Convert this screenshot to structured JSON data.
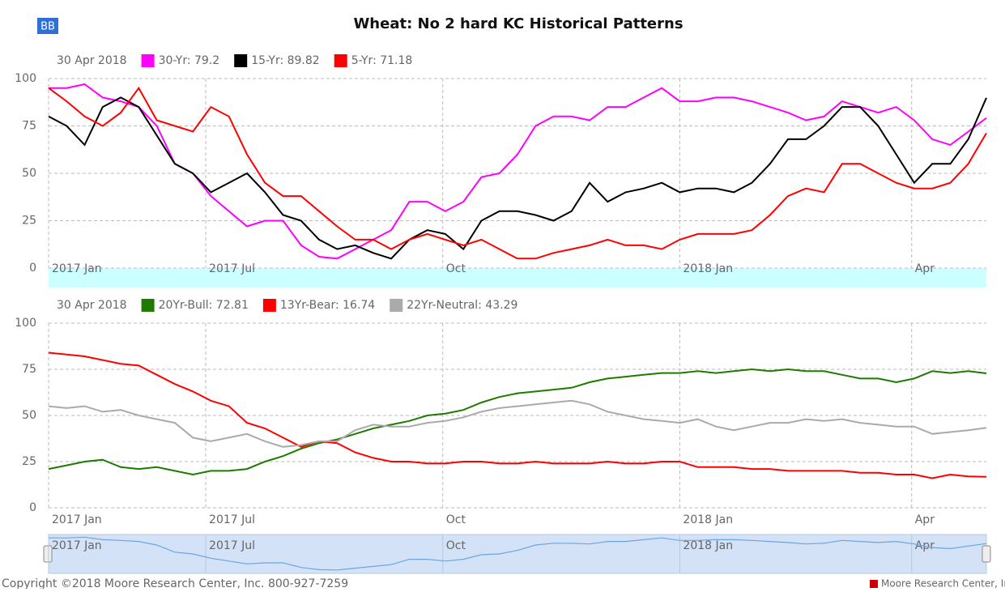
{
  "button": "BB",
  "chart_data": [
    {
      "type": "line",
      "title": "Wheat: No 2 hard KC Historical Patterns",
      "legend_date": "30 Apr 2018",
      "xlim": [
        0,
        364
      ],
      "xticks": [
        {
          "value": 0,
          "label": "2017 Jan"
        },
        {
          "value": 61,
          "label": "2017 Jul"
        },
        {
          "value": 153,
          "label": "Oct"
        },
        {
          "value": 245,
          "label": "2018 Jan"
        },
        {
          "value": 335,
          "label": "Apr"
        }
      ],
      "ylim": [
        0,
        100
      ],
      "yticks": [
        0,
        25,
        50,
        75,
        100
      ],
      "grid": true,
      "x": [
        0,
        7,
        14,
        21,
        28,
        35,
        42,
        49,
        56,
        63,
        70,
        77,
        84,
        91,
        98,
        105,
        112,
        119,
        126,
        133,
        140,
        147,
        154,
        161,
        168,
        175,
        182,
        189,
        196,
        203,
        210,
        217,
        224,
        231,
        238,
        245,
        252,
        259,
        266,
        273,
        280,
        287,
        294,
        301,
        308,
        315,
        322,
        329,
        336,
        343,
        350,
        357,
        364
      ],
      "series": [
        {
          "name": "30-Yr: 79.2",
          "color": "#ff00ff",
          "values": [
            95,
            95,
            97,
            90,
            88,
            85,
            75,
            55,
            50,
            38,
            30,
            22,
            25,
            25,
            12,
            6,
            5,
            10,
            15,
            20,
            35,
            35,
            30,
            35,
            48,
            50,
            60,
            75,
            80,
            80,
            78,
            85,
            85,
            90,
            95,
            88,
            88,
            90,
            90,
            88,
            85,
            82,
            78,
            80,
            88,
            85,
            82,
            85,
            78,
            68,
            65,
            72,
            79.2
          ]
        },
        {
          "name": "15-Yr: 89.82",
          "color": "#000000",
          "values": [
            80,
            75,
            65,
            85,
            90,
            85,
            70,
            55,
            50,
            40,
            45,
            50,
            40,
            28,
            25,
            15,
            10,
            12,
            8,
            5,
            15,
            20,
            18,
            10,
            25,
            30,
            30,
            28,
            25,
            30,
            45,
            35,
            40,
            42,
            45,
            40,
            42,
            42,
            40,
            45,
            55,
            68,
            68,
            75,
            85,
            85,
            75,
            60,
            45,
            55,
            55,
            68,
            89.82
          ]
        },
        {
          "name": "5-Yr: 71.18",
          "color": "#ff0000",
          "values": [
            95,
            88,
            80,
            75,
            82,
            95,
            78,
            75,
            72,
            85,
            80,
            60,
            45,
            38,
            38,
            30,
            22,
            15,
            15,
            10,
            15,
            18,
            15,
            12,
            15,
            10,
            5,
            5,
            8,
            10,
            12,
            15,
            12,
            12,
            10,
            15,
            18,
            18,
            18,
            20,
            28,
            38,
            42,
            40,
            55,
            55,
            50,
            45,
            42,
            42,
            45,
            55,
            71.18
          ]
        }
      ]
    },
    {
      "type": "line",
      "legend_date": "30 Apr 2018",
      "xlim": [
        0,
        364
      ],
      "xticks": [
        {
          "value": 0,
          "label": "2017 Jan"
        },
        {
          "value": 61,
          "label": "2017 Jul"
        },
        {
          "value": 153,
          "label": "Oct"
        },
        {
          "value": 245,
          "label": "2018 Jan"
        },
        {
          "value": 335,
          "label": "Apr"
        }
      ],
      "ylim": [
        0,
        100
      ],
      "yticks": [
        0,
        25,
        50,
        75,
        100
      ],
      "grid": true,
      "x": [
        0,
        7,
        14,
        21,
        28,
        35,
        42,
        49,
        56,
        63,
        70,
        77,
        84,
        91,
        98,
        105,
        112,
        119,
        126,
        133,
        140,
        147,
        154,
        161,
        168,
        175,
        182,
        189,
        196,
        203,
        210,
        217,
        224,
        231,
        238,
        245,
        252,
        259,
        266,
        273,
        280,
        287,
        294,
        301,
        308,
        315,
        322,
        329,
        336,
        343,
        350,
        357,
        364
      ],
      "series": [
        {
          "name": "20Yr-Bull: 72.81",
          "color": "#1f7a00",
          "values": [
            21,
            23,
            25,
            26,
            22,
            21,
            22,
            20,
            18,
            20,
            20,
            21,
            25,
            28,
            32,
            35,
            37,
            40,
            43,
            45,
            47,
            50,
            51,
            53,
            57,
            60,
            62,
            63,
            64,
            65,
            68,
            70,
            71,
            72,
            73,
            73,
            74,
            73,
            74,
            75,
            74,
            75,
            74,
            74,
            72,
            70,
            70,
            68,
            70,
            74,
            73,
            74,
            72.81
          ]
        },
        {
          "name": "13Yr-Bear: 16.74",
          "color": "#ff0000",
          "values": [
            84,
            83,
            82,
            80,
            78,
            77,
            72,
            67,
            63,
            58,
            55,
            46,
            43,
            38,
            33,
            36,
            35,
            30,
            27,
            25,
            25,
            24,
            24,
            25,
            25,
            24,
            24,
            25,
            24,
            24,
            24,
            25,
            24,
            24,
            25,
            25,
            22,
            22,
            22,
            21,
            21,
            20,
            20,
            20,
            20,
            19,
            19,
            18,
            18,
            16,
            18,
            17,
            16.74
          ]
        },
        {
          "name": "22Yr-Neutral: 43.29",
          "color": "#aaaaaa",
          "values": [
            55,
            54,
            55,
            52,
            53,
            50,
            48,
            46,
            38,
            36,
            38,
            40,
            36,
            33,
            34,
            36,
            36,
            42,
            45,
            44,
            44,
            46,
            47,
            49,
            52,
            54,
            55,
            56,
            57,
            58,
            56,
            52,
            50,
            48,
            47,
            46,
            48,
            44,
            42,
            44,
            46,
            46,
            48,
            47,
            48,
            46,
            45,
            44,
            44,
            40,
            41,
            42,
            43.29
          ]
        }
      ]
    }
  ],
  "footer": {
    "copyright": "Copyright ©2018 Moore Research Center, Inc. 800-927-7259",
    "brand": "Moore Research Center, Inc"
  }
}
